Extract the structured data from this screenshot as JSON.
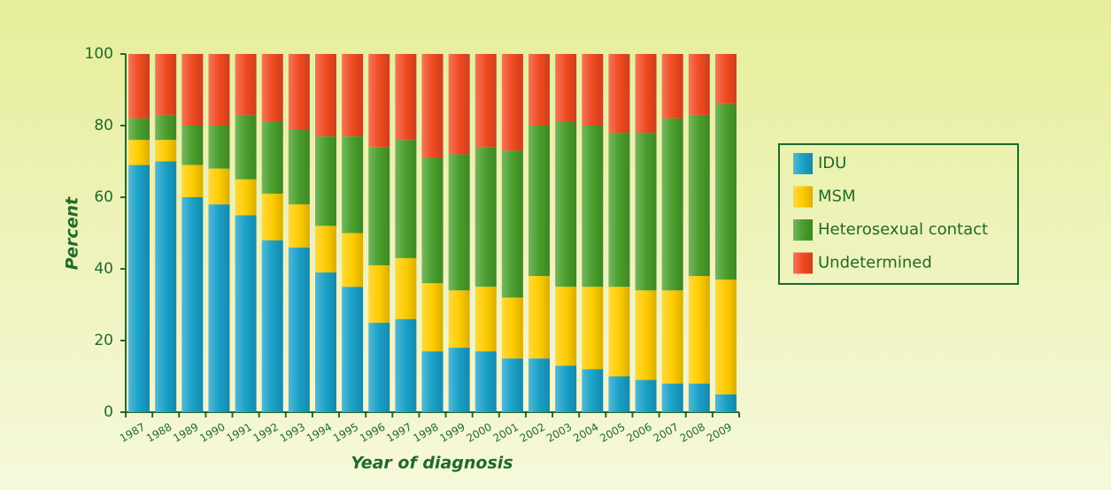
{
  "chart_data": {
    "type": "stacked-bar",
    "x_label": "Year of diagnosis",
    "y_label": "Percent",
    "categories": [
      "1987",
      "1988",
      "1989",
      "1990",
      "1991",
      "1992",
      "1993",
      "1994",
      "1995",
      "1996",
      "1997",
      "1998",
      "1999",
      "2000",
      "2001",
      "2002",
      "2003",
      "2004",
      "2005",
      "2006",
      "2007",
      "2008",
      "2009"
    ],
    "series": [
      {
        "name": "IDU",
        "color": "#1aa0c8",
        "values": [
          69,
          70,
          60,
          58,
          55,
          48,
          46,
          39,
          35,
          25,
          26,
          17,
          18,
          17,
          15,
          15,
          13,
          12,
          10,
          9,
          8,
          8,
          5
        ]
      },
      {
        "name": "MSM",
        "color": "#ffcc00",
        "values": [
          7,
          6,
          9,
          10,
          10,
          13,
          12,
          13,
          15,
          16,
          17,
          19,
          16,
          18,
          17,
          23,
          22,
          23,
          25,
          25,
          26,
          30,
          32
        ]
      },
      {
        "name": "Heterosexual contact",
        "color": "#4a9e2c",
        "values": [
          6,
          7,
          11,
          12,
          18,
          20,
          21,
          25,
          27,
          33,
          33,
          35,
          38,
          39,
          41,
          42,
          46,
          45,
          43,
          44,
          48,
          45,
          49
        ]
      },
      {
        "name": "Undetermined",
        "color": "#f04a22",
        "values": [
          18,
          17,
          20,
          20,
          17,
          19,
          21,
          23,
          23,
          26,
          24,
          29,
          28,
          26,
          27,
          20,
          19,
          20,
          22,
          22,
          18,
          17,
          14
        ]
      }
    ],
    "ylim": [
      0,
      100
    ],
    "yticks": [
      0,
      20,
      40,
      60,
      80,
      100
    ],
    "legend": "right"
  }
}
